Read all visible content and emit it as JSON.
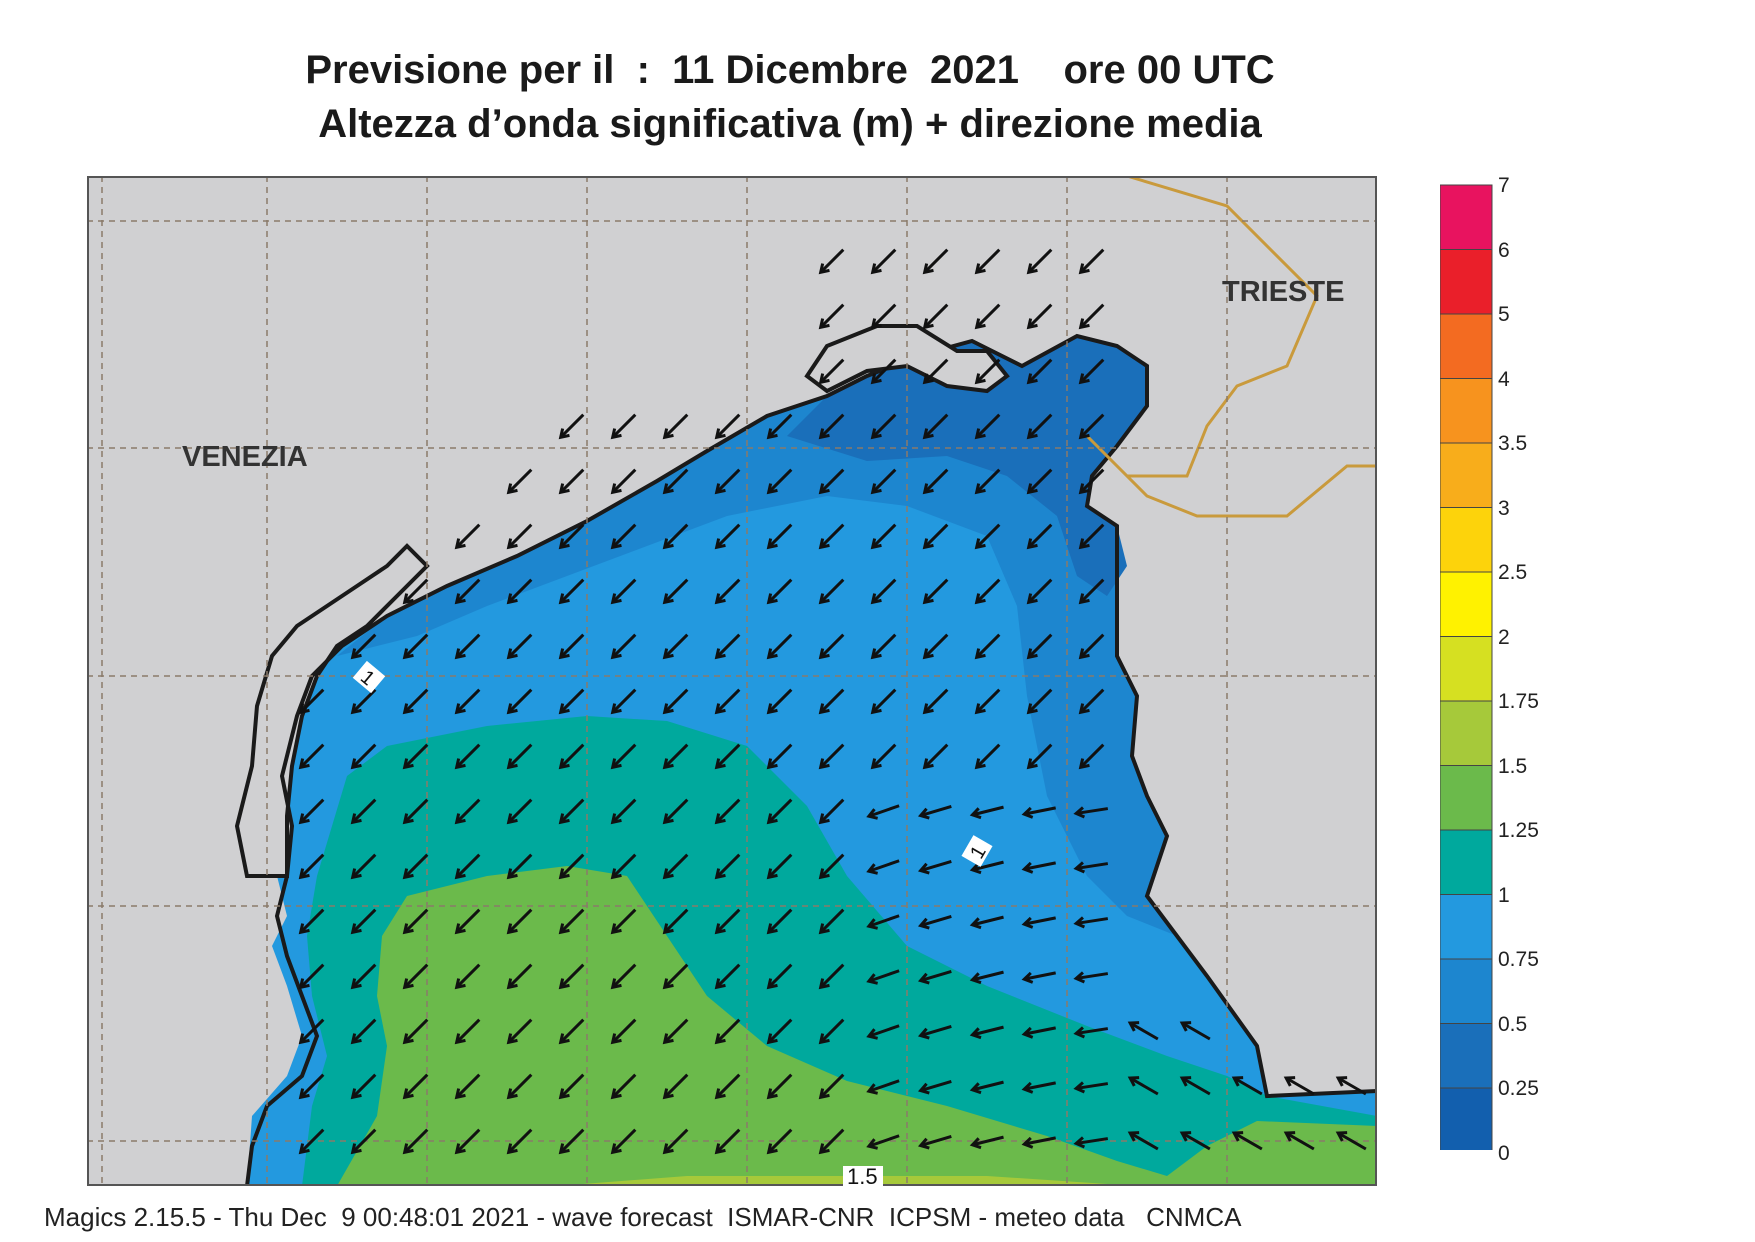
{
  "title": {
    "line1": "Previsione per il  :  11 Dicembre  2021    ore 00 UTC",
    "line2": "Altezza d’onda significativa (m) + direzione media"
  },
  "map": {
    "cities": [
      "VENEZIA",
      "TRIESTE"
    ],
    "contour_labels": [
      "1",
      "1",
      "1.5"
    ],
    "colors": {
      "land": "#d0d0d2",
      "sea_0_25": "#1a6fba",
      "sea_0_5": "#1d86cf",
      "sea_0_75": "#2399df",
      "sea_1": "#00a99d",
      "sea_1_25": "#6bba4b",
      "sea_1_5": "#a6c93a",
      "border": "#c99a3c"
    },
    "wave_direction": "towards south-west, turning west in the south-east"
  },
  "colorbar": {
    "labels": [
      "7",
      "6",
      "5",
      "4",
      "3.5",
      "3",
      "2.5",
      "2",
      "1.75",
      "1.5",
      "1.25",
      "1",
      "0.75",
      "0.5",
      "0.25",
      "0"
    ],
    "colors": [
      "#e8135f",
      "#ea1f2a",
      "#f36b21",
      "#f7931e",
      "#f8ad1b",
      "#fdd30b",
      "#fff200",
      "#d6e021",
      "#a6c93a",
      "#6bba4b",
      "#00a99d",
      "#2399df",
      "#1d86cf",
      "#1a6fba",
      "#125fae"
    ]
  },
  "footer": "Magics 2.15.5 - Thu Dec  9 00:48:01 2021 - wave forecast  ISMAR-CNR  ICPSM - meteo data   CNMCA"
}
